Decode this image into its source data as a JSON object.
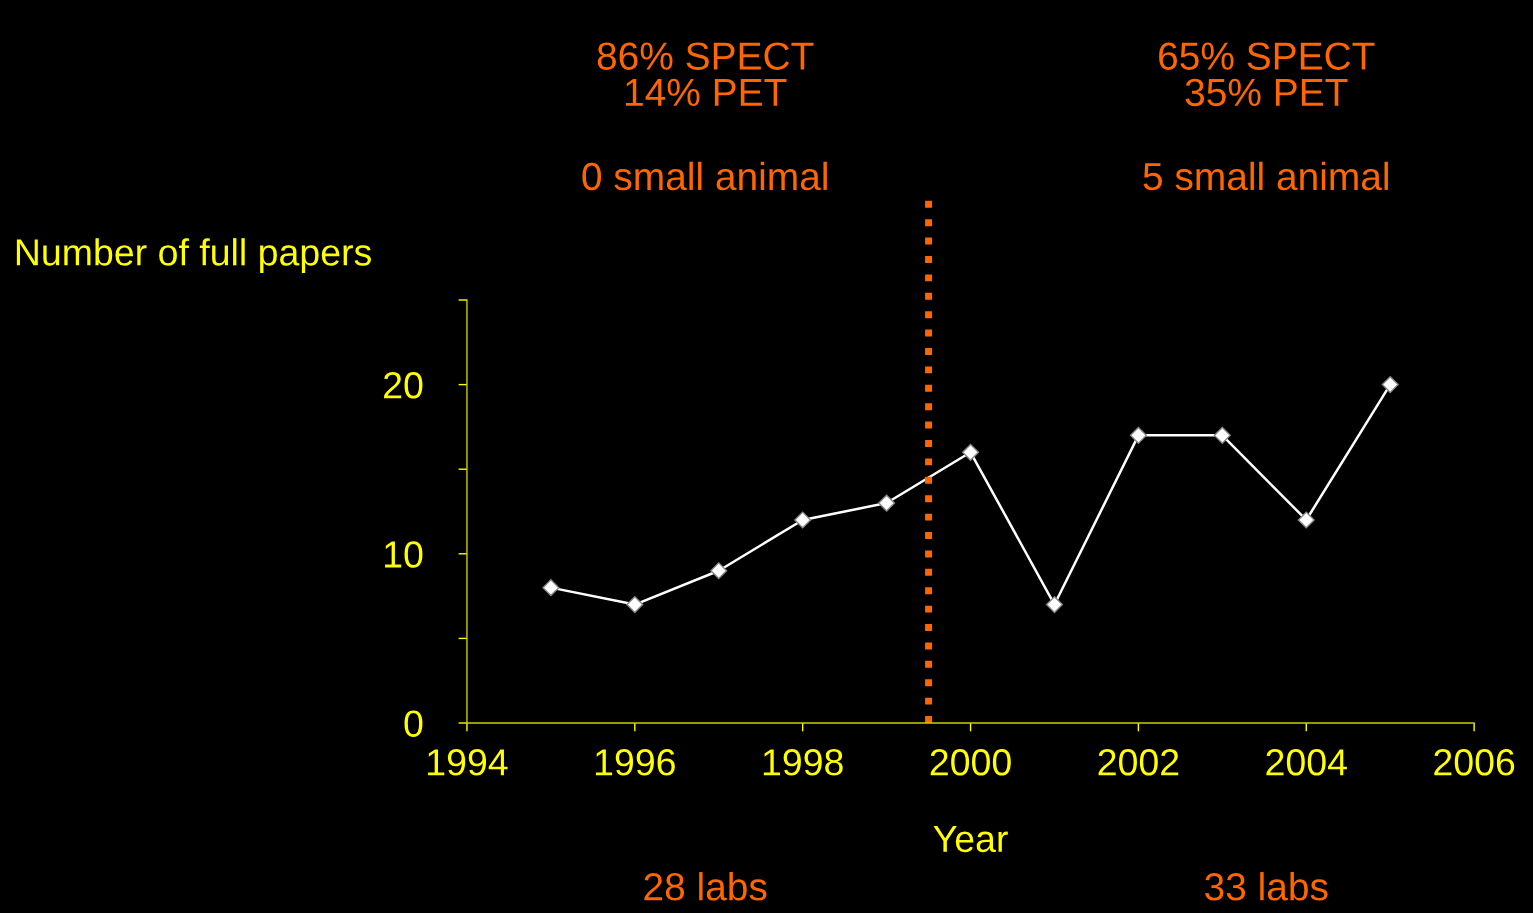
{
  "chart_data": {
    "type": "line",
    "xlabel": "Year",
    "ylabel": "Number of full papers",
    "x": [
      1995,
      1996,
      1997,
      1998,
      1999,
      2000,
      2001,
      2002,
      2003,
      2004,
      2005
    ],
    "series": [
      {
        "color": "#ffffff",
        "values": [
          8,
          7,
          9,
          12,
          13,
          16,
          7,
          17,
          17,
          12,
          20
        ]
      }
    ],
    "xlim": [
      1994,
      2006
    ],
    "xticks": [
      1994,
      1996,
      1998,
      2000,
      2002,
      2004,
      2006
    ],
    "ylim": [
      0,
      25
    ],
    "yticks": [
      0,
      {
        "value": 5,
        "label": null
      },
      10,
      {
        "value": 15,
        "label": null
      },
      20,
      {
        "value": 25,
        "label": null
      }
    ],
    "marker": "diamond",
    "line_style": "solid",
    "grid": false,
    "legend": false,
    "ref_lines": [
      {
        "axis": "x",
        "value": 1999.5,
        "color": "#ff6600",
        "line_style": "dotted"
      }
    ],
    "annotations": [
      "86% SPECT\n14% PET",
      "0 small animal",
      "65% SPECT\n35% PET",
      "5 small animal",
      "28 labs",
      "33 labs"
    ]
  }
}
